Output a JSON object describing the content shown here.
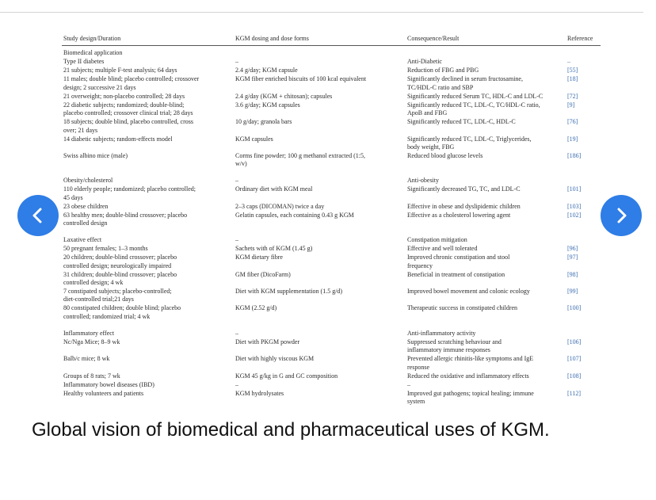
{
  "table": {
    "header": [
      "Study design/Duration",
      "KGM dosing and dose forms",
      "Consequence/Result",
      "Reference"
    ],
    "sections": [
      [
        [
          [
            "Biomedical application"
          ],
          [],
          [],
          []
        ],
        [
          [
            "Type II diabetes"
          ],
          [
            "–"
          ],
          [
            "Anti-Diabetic"
          ],
          [
            "–"
          ]
        ],
        [
          [
            "21 subjects; multiple F-test analysis; 64 days"
          ],
          [
            "2.4 g/day; KGM capsule"
          ],
          [
            "Reduction of FBG and PBG"
          ],
          [
            "[55]"
          ]
        ],
        [
          [
            "11 males; double blind; placebo controlled; crossover",
            "design; 2 successive 21 days"
          ],
          [
            "KGM fiber enriched biscuits of 100 kcal equivalent"
          ],
          [
            "Significantly declined in serum fructosamine,",
            "TC/HDL-C ratio and SBP"
          ],
          [
            "[18]"
          ]
        ],
        [
          [
            "21 overweight; non-placebo controlled; 28 days"
          ],
          [
            "2.4 g/day (KGM + chitosan); capsules"
          ],
          [
            "Significantly reduced Serum TC, HDL-C and LDL-C"
          ],
          [
            "[72]"
          ]
        ],
        [
          [
            "22 diabetic subjects; randomized; double-blind;",
            "placebo controlled; crossover clinical trial; 28 days"
          ],
          [
            "3.6 g/day; KGM capsules"
          ],
          [
            "Significantly reduced TC, LDL-C, TC/HDL-C ratio,",
            "ApoB and FBG"
          ],
          [
            "[9]"
          ]
        ],
        [
          [
            "18 subjects; double blind, placebo controlled, cross",
            "over; 21 days"
          ],
          [
            "10 g/day; granola bars"
          ],
          [
            "Significantly reduced TC, LDL-C, HDL-C"
          ],
          [
            "[76]"
          ]
        ],
        [
          [
            "14 diabetic subjects; random-effects model"
          ],
          [
            "KGM capsules"
          ],
          [
            "Significantly reduced TC, LDL-C, Triglycerides,",
            "body weight, FBG"
          ],
          [
            "[19]"
          ]
        ],
        [
          [
            "Swiss albino mice (male)"
          ],
          [
            "Corms fine powder; 100 g methanol extracted (1:5,",
            "w/v)"
          ],
          [
            "Reduced blood glucose levels"
          ],
          [
            "[186]"
          ]
        ]
      ],
      [
        [
          [
            "Obesity/cholesterol"
          ],
          [
            "–"
          ],
          [
            "Anti-obesity"
          ],
          []
        ],
        [
          [
            "110 elderly people; randomized; placebo controlled;",
            "45 days"
          ],
          [
            "Ordinary diet with KGM meal"
          ],
          [
            "Significantly decreased TG, TC, and LDL-C"
          ],
          [
            "[101]"
          ]
        ],
        [
          [
            "23 obese children"
          ],
          [
            "2–3 caps (DICOMAN) twice a day"
          ],
          [
            "Effective in obese and dyslipidemic children"
          ],
          [
            "[103]"
          ]
        ],
        [
          [
            "63 healthy men; double-blind crossover; placebo",
            "controlled design"
          ],
          [
            "Gelatin capsules, each containing 0.43 g KGM"
          ],
          [
            "Effective as a cholesterol lowering agent"
          ],
          [
            "[102]"
          ]
        ]
      ],
      [
        [
          [
            "Laxative effect"
          ],
          [
            "–"
          ],
          [
            "Constipation mitigation"
          ],
          []
        ],
        [
          [
            "50 pregnant females; 1–3 months"
          ],
          [
            "Sachets with of KGM (1.45 g)"
          ],
          [
            "Effective and well tolerated"
          ],
          [
            "[96]"
          ]
        ],
        [
          [
            "20 children; double-blind crossover; placebo",
            "controlled design; neurologically impaired"
          ],
          [
            "KGM dietary fibre"
          ],
          [
            "Improved chronic constipation and stool",
            "frequency"
          ],
          [
            "[97]"
          ]
        ],
        [
          [
            "31 children; double-blind crossover; placebo",
            "controlled design; 4 wk"
          ],
          [
            "GM fiber (DicoFarm)"
          ],
          [
            "Beneficial in treatment of constipation"
          ],
          [
            "[98]"
          ]
        ],
        [
          [
            "7 constipated subjects; placebo-controlled;",
            "diet-controlled trial;21 days"
          ],
          [
            "Diet with KGM supplementation (1.5 g/d)"
          ],
          [
            "Improved bowel movement and colonic ecology"
          ],
          [
            "[99]"
          ]
        ],
        [
          [
            "80 constipated children; double blind; placebo",
            "controlled; randomized trial; 4 wk"
          ],
          [
            "KGM (2.52 g/d)"
          ],
          [
            "Therapeutic success in constipated children"
          ],
          [
            "[100]"
          ]
        ]
      ],
      [
        [
          [
            "Inflammatory effect"
          ],
          [
            "–"
          ],
          [
            "Anti-inflammatory activity"
          ],
          []
        ],
        [
          [
            "Nc/Nga Mice; 8–9 wk"
          ],
          [
            "Diet with PKGM powder"
          ],
          [
            "Suppressed scratching behaviour and",
            "inflammatory immune responses"
          ],
          [
            "[106]"
          ]
        ],
        [
          [
            "Balb/c mice; 8 wk"
          ],
          [
            "Diet with highly viscous KGM"
          ],
          [
            "Prevented allergic rhinitis-like symptoms and IgE",
            "response"
          ],
          [
            "[107]"
          ]
        ],
        [
          [
            "Groups of 8 rats; 7 wk"
          ],
          [
            "KGM 45 g/kg in G and GC composition"
          ],
          [
            "Reduced the oxidative and inflammatory effects"
          ],
          [
            "[108]"
          ]
        ],
        [
          [
            "Inflammatory bowel diseases (IBD)"
          ],
          [
            "–"
          ],
          [
            "–"
          ],
          []
        ],
        [
          [
            "Healthy volunteers and patients"
          ],
          [
            "KGM hydrolysates"
          ],
          [
            "Improved gut pathogens; topical healing; immune",
            "system"
          ],
          [
            "[112]"
          ]
        ]
      ]
    ]
  },
  "caption": "Global vision of biomedical and pharmaceutical uses of KGM."
}
